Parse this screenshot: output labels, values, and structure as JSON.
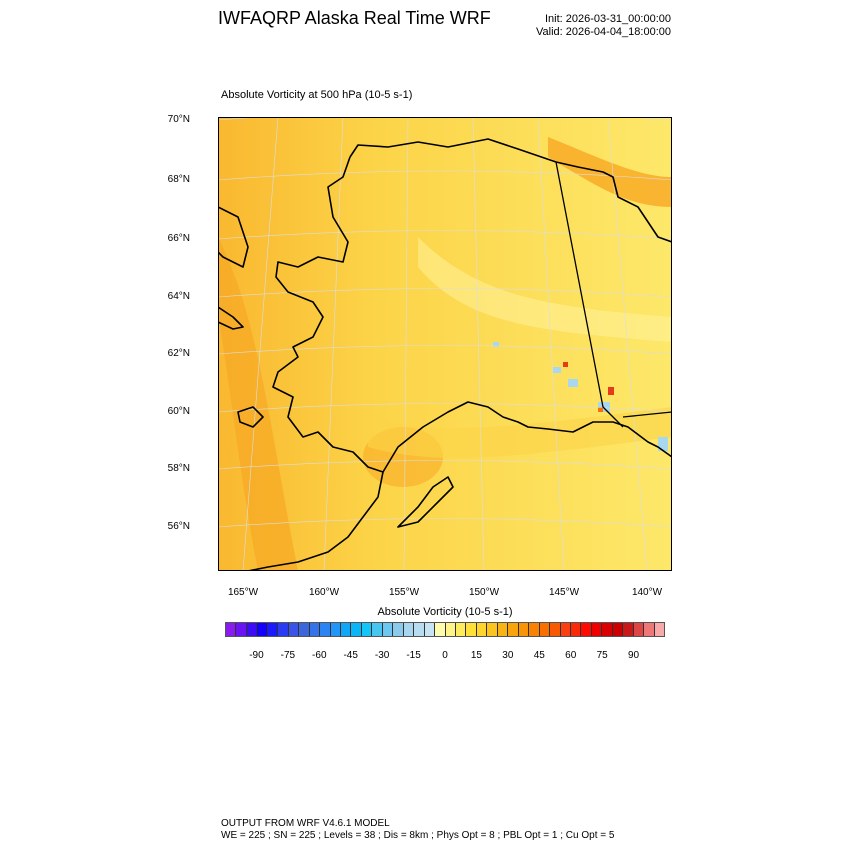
{
  "header": {
    "title": "IWFAQRP Alaska Real Time WRF",
    "init": "Init: 2026-03-31_00:00:00",
    "valid": "Valid: 2026-04-04_18:00:00"
  },
  "plot": {
    "subtitle": "Absolute Vorticity at 500 hPa   (10-5 s-1)",
    "lat_labels": [
      "70°N",
      "68°N",
      "66°N",
      "64°N",
      "62°N",
      "60°N",
      "58°N",
      "56°N"
    ],
    "lon_labels": [
      "165°W",
      "160°W",
      "155°W",
      "150°W",
      "145°W",
      "140°W"
    ],
    "field_colors": {
      "background": "#fde86a",
      "band": "#fbc93a",
      "strong": "#f7a823",
      "negative": "#a8d8f0",
      "max": "#e63a1a"
    }
  },
  "colorbar": {
    "title": "Absolute Vorticity  (10-5 s-1)",
    "labels": [
      "-90",
      "-75",
      "-60",
      "-45",
      "-30",
      "-15",
      "0",
      "15",
      "30",
      "45",
      "60",
      "75",
      "90"
    ],
    "colors": [
      "#8a1cf0",
      "#6a14f4",
      "#3c0cf8",
      "#1400ff",
      "#1a1aff",
      "#2a3cf2",
      "#3a54e8",
      "#3c66dc",
      "#3474e8",
      "#2c84f4",
      "#2296f8",
      "#12a6f8",
      "#0ab6f8",
      "#14c6f8",
      "#46c6f0",
      "#6cc8f0",
      "#8ccaec",
      "#a8d6ee",
      "#b8dcf0",
      "#c6e4f4",
      "#fffcb0",
      "#fff48a",
      "#ffec5c",
      "#ffe03a",
      "#ffd42c",
      "#fcc41e",
      "#f8b414",
      "#f8a40c",
      "#f89408",
      "#f88204",
      "#f87000",
      "#f85a00",
      "#f84010",
      "#f82a0a",
      "#ff0a00",
      "#ee0000",
      "#d80000",
      "#cc0000",
      "#c81818",
      "#de4646",
      "#ee7878",
      "#f8aaaa"
    ]
  },
  "footer": {
    "line1": "OUTPUT FROM WRF V4.6.1 MODEL",
    "line2": "WE = 225 ; SN = 225 ; Levels = 38 ; Dis = 8km ; Phys Opt = 8 ; PBL Opt = 1 ; Cu Opt = 5"
  }
}
